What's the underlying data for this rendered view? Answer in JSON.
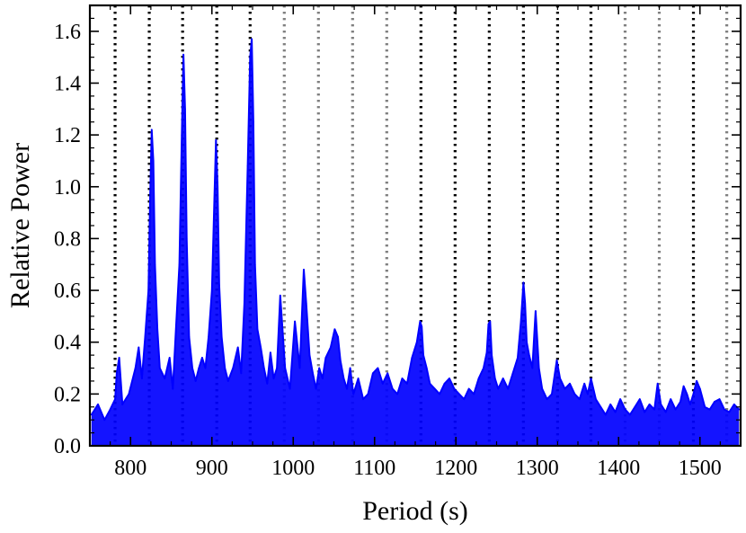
{
  "chart_data": {
    "type": "line",
    "xlabel": "Period (s)",
    "ylabel": "Relative Power",
    "xlim": [
      750,
      1550
    ],
    "ylim": [
      0,
      1.7
    ],
    "x_ticks": [
      800,
      900,
      1000,
      1100,
      1200,
      1300,
      1400,
      1500
    ],
    "x_tick_labels": [
      "800",
      "900",
      "1000",
      "1100",
      "1200",
      "1300",
      "1400",
      "1500"
    ],
    "y_ticks": [
      0.0,
      0.2,
      0.4,
      0.6,
      0.8,
      1.0,
      1.2,
      1.4,
      1.6
    ],
    "y_tick_labels": [
      "0.0",
      "0.2",
      "0.4",
      "0.6",
      "0.8",
      "1.0",
      "1.2",
      "1.4",
      "1.6"
    ],
    "grid": false,
    "series": [
      {
        "color": "#0000ff",
        "x": [
          752,
          760,
          768,
          775,
          781,
          783,
          786,
          790,
          798,
          806,
          810,
          814,
          818,
          822,
          824,
          826,
          828,
          830,
          833,
          836,
          842,
          848,
          852,
          856,
          860,
          863,
          865,
          867,
          869,
          872,
          876,
          880,
          884,
          888,
          892,
          896,
          900,
          903,
          905,
          907,
          909,
          912,
          916,
          920,
          926,
          932,
          936,
          940,
          944,
          947,
          949,
          951,
          953,
          956,
          960,
          964,
          968,
          972,
          976,
          980,
          984,
          990,
          996,
          1002,
          1008,
          1013,
          1016,
          1020,
          1024,
          1028,
          1032,
          1036,
          1040,
          1046,
          1051,
          1055,
          1058,
          1062,
          1066,
          1070,
          1074,
          1080,
          1086,
          1092,
          1098,
          1104,
          1110,
          1116,
          1122,
          1128,
          1134,
          1140,
          1146,
          1152,
          1156,
          1158,
          1160,
          1164,
          1168,
          1174,
          1180,
          1186,
          1192,
          1198,
          1204,
          1210,
          1216,
          1222,
          1228,
          1234,
          1238,
          1240,
          1242,
          1244,
          1248,
          1252,
          1258,
          1264,
          1270,
          1276,
          1280,
          1283,
          1285,
          1287,
          1290,
          1294,
          1298,
          1302,
          1306,
          1312,
          1318,
          1324,
          1328,
          1334,
          1340,
          1346,
          1352,
          1358,
          1362,
          1366,
          1372,
          1378,
          1384,
          1390,
          1396,
          1402,
          1408,
          1414,
          1420,
          1426,
          1432,
          1438,
          1444,
          1448,
          1452,
          1458,
          1464,
          1470,
          1476,
          1480,
          1484,
          1488,
          1492,
          1496,
          1500,
          1506,
          1512,
          1518,
          1524,
          1530,
          1536,
          1542,
          1548
        ],
        "y": [
          0.12,
          0.16,
          0.1,
          0.14,
          0.18,
          0.28,
          0.34,
          0.16,
          0.2,
          0.3,
          0.38,
          0.26,
          0.42,
          0.6,
          0.95,
          1.22,
          1.1,
          0.7,
          0.45,
          0.3,
          0.26,
          0.34,
          0.22,
          0.46,
          0.7,
          1.2,
          1.51,
          1.3,
          0.8,
          0.42,
          0.3,
          0.25,
          0.3,
          0.34,
          0.3,
          0.42,
          0.6,
          0.95,
          1.18,
          1.0,
          0.62,
          0.42,
          0.3,
          0.25,
          0.3,
          0.38,
          0.28,
          0.55,
          1.08,
          1.5,
          1.57,
          1.25,
          0.7,
          0.45,
          0.38,
          0.3,
          0.24,
          0.36,
          0.26,
          0.3,
          0.58,
          0.3,
          0.22,
          0.48,
          0.3,
          0.68,
          0.55,
          0.35,
          0.28,
          0.22,
          0.3,
          0.26,
          0.34,
          0.38,
          0.45,
          0.42,
          0.33,
          0.26,
          0.22,
          0.3,
          0.2,
          0.26,
          0.18,
          0.2,
          0.28,
          0.3,
          0.24,
          0.28,
          0.22,
          0.2,
          0.26,
          0.24,
          0.34,
          0.4,
          0.48,
          0.46,
          0.35,
          0.3,
          0.24,
          0.22,
          0.2,
          0.24,
          0.26,
          0.22,
          0.2,
          0.18,
          0.22,
          0.2,
          0.26,
          0.3,
          0.36,
          0.47,
          0.48,
          0.35,
          0.26,
          0.22,
          0.26,
          0.22,
          0.28,
          0.34,
          0.48,
          0.63,
          0.55,
          0.4,
          0.35,
          0.3,
          0.52,
          0.3,
          0.22,
          0.18,
          0.2,
          0.33,
          0.26,
          0.22,
          0.24,
          0.2,
          0.18,
          0.24,
          0.2,
          0.26,
          0.18,
          0.15,
          0.12,
          0.16,
          0.13,
          0.18,
          0.14,
          0.12,
          0.15,
          0.18,
          0.13,
          0.16,
          0.14,
          0.24,
          0.16,
          0.13,
          0.18,
          0.14,
          0.17,
          0.23,
          0.2,
          0.16,
          0.2,
          0.25,
          0.22,
          0.15,
          0.14,
          0.17,
          0.18,
          0.14,
          0.13,
          0.16,
          0.14
        ]
      }
    ],
    "vlines": [
      {
        "x": 781,
        "style": "black-dotted"
      },
      {
        "x": 823,
        "style": "black-dotted"
      },
      {
        "x": 864,
        "style": "black-dotted"
      },
      {
        "x": 906,
        "style": "black-dotted"
      },
      {
        "x": 947,
        "style": "black-dotted"
      },
      {
        "x": 989,
        "style": "gray-dotted"
      },
      {
        "x": 1031,
        "style": "gray-dotted"
      },
      {
        "x": 1073,
        "style": "gray-dotted"
      },
      {
        "x": 1115,
        "style": "gray-dotted"
      },
      {
        "x": 1157,
        "style": "black-dotted"
      },
      {
        "x": 1199,
        "style": "black-dotted"
      },
      {
        "x": 1241,
        "style": "black-dotted"
      },
      {
        "x": 1283,
        "style": "black-dotted"
      },
      {
        "x": 1325,
        "style": "black-dotted"
      },
      {
        "x": 1366,
        "style": "black-dotted"
      },
      {
        "x": 1408,
        "style": "gray-dotted"
      },
      {
        "x": 1450,
        "style": "gray-dotted"
      },
      {
        "x": 1492,
        "style": "black-dotted"
      },
      {
        "x": 1533,
        "style": "gray-dotted"
      }
    ],
    "line_colors": {
      "black-dotted": "#000000",
      "gray-dotted": "#808080"
    }
  }
}
